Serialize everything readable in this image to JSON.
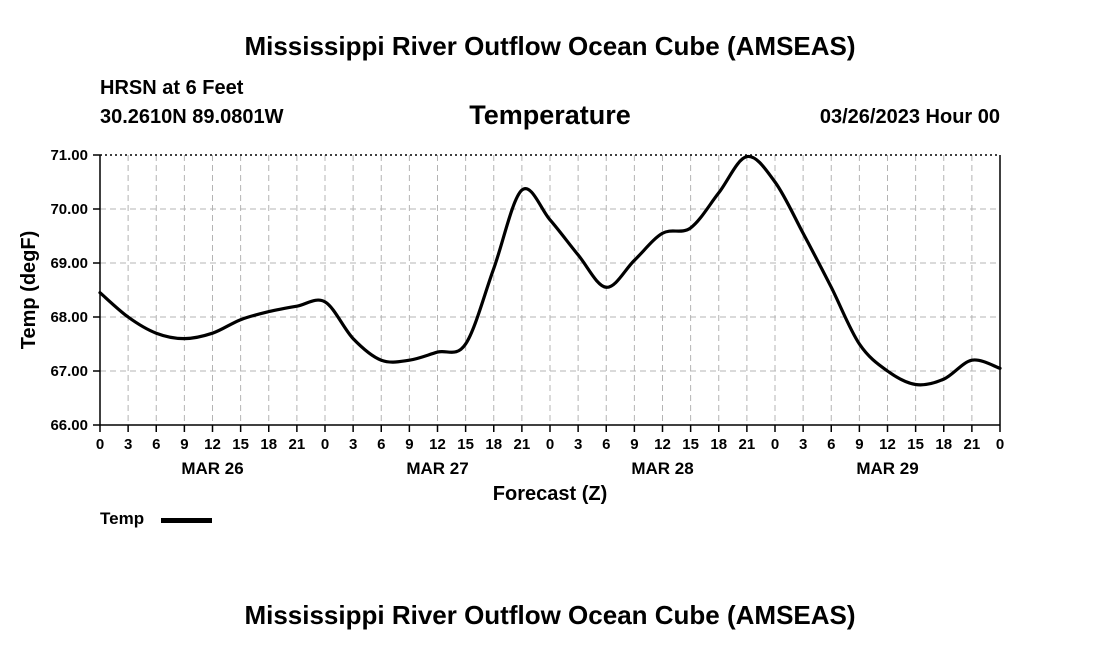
{
  "header": {
    "title": "Mississippi River Outflow Ocean Cube (AMSEAS)",
    "station": "HRSN at 6 Feet",
    "coords": "30.2610N  89.0801W",
    "chart_title": "Temperature",
    "run_time": "03/26/2023 Hour 00"
  },
  "footer": {
    "title": "Mississippi River Outflow Ocean Cube (AMSEAS)"
  },
  "legend": {
    "label": "Temp"
  },
  "chart_data": {
    "type": "line",
    "title": "Temperature",
    "xlabel": "Forecast (Z)",
    "ylabel": "Temp (degF)",
    "ylim": [
      66.0,
      71.0
    ],
    "xlim": [
      0,
      96
    ],
    "grid": true,
    "y_ticks": [
      "66.00",
      "67.00",
      "68.00",
      "69.00",
      "70.00",
      "71.00"
    ],
    "x_ticks": [
      {
        "h": 0,
        "label": "0"
      },
      {
        "h": 3,
        "label": "3"
      },
      {
        "h": 6,
        "label": "6"
      },
      {
        "h": 9,
        "label": "9"
      },
      {
        "h": 12,
        "label": "12"
      },
      {
        "h": 15,
        "label": "15"
      },
      {
        "h": 18,
        "label": "18"
      },
      {
        "h": 21,
        "label": "21"
      },
      {
        "h": 24,
        "label": "0"
      },
      {
        "h": 27,
        "label": "3"
      },
      {
        "h": 30,
        "label": "6"
      },
      {
        "h": 33,
        "label": "9"
      },
      {
        "h": 36,
        "label": "12"
      },
      {
        "h": 39,
        "label": "15"
      },
      {
        "h": 42,
        "label": "18"
      },
      {
        "h": 45,
        "label": "21"
      },
      {
        "h": 48,
        "label": "0"
      },
      {
        "h": 51,
        "label": "3"
      },
      {
        "h": 54,
        "label": "6"
      },
      {
        "h": 57,
        "label": "9"
      },
      {
        "h": 60,
        "label": "12"
      },
      {
        "h": 63,
        "label": "15"
      },
      {
        "h": 66,
        "label": "18"
      },
      {
        "h": 69,
        "label": "21"
      },
      {
        "h": 72,
        "label": "0"
      },
      {
        "h": 75,
        "label": "3"
      },
      {
        "h": 78,
        "label": "6"
      },
      {
        "h": 81,
        "label": "9"
      },
      {
        "h": 84,
        "label": "12"
      },
      {
        "h": 87,
        "label": "15"
      },
      {
        "h": 90,
        "label": "18"
      },
      {
        "h": 93,
        "label": "21"
      },
      {
        "h": 96,
        "label": "0"
      }
    ],
    "day_labels": [
      {
        "h": 12,
        "label": "MAR 26"
      },
      {
        "h": 36,
        "label": "MAR 27"
      },
      {
        "h": 60,
        "label": "MAR 28"
      },
      {
        "h": 84,
        "label": "MAR 29"
      }
    ],
    "series": [
      {
        "name": "Temp",
        "color": "#000000",
        "points": [
          [
            0,
            68.45
          ],
          [
            3,
            68.0
          ],
          [
            6,
            67.7
          ],
          [
            9,
            67.6
          ],
          [
            12,
            67.7
          ],
          [
            15,
            67.95
          ],
          [
            18,
            68.1
          ],
          [
            21,
            68.2
          ],
          [
            24,
            68.28
          ],
          [
            27,
            67.6
          ],
          [
            30,
            67.2
          ],
          [
            33,
            67.2
          ],
          [
            36,
            67.35
          ],
          [
            39,
            67.5
          ],
          [
            42,
            68.9
          ],
          [
            45,
            70.35
          ],
          [
            48,
            69.8
          ],
          [
            51,
            69.15
          ],
          [
            54,
            68.55
          ],
          [
            57,
            69.05
          ],
          [
            60,
            69.55
          ],
          [
            63,
            69.65
          ],
          [
            66,
            70.3
          ],
          [
            69,
            70.97
          ],
          [
            72,
            70.5
          ],
          [
            75,
            69.55
          ],
          [
            78,
            68.55
          ],
          [
            81,
            67.5
          ],
          [
            84,
            67.0
          ],
          [
            87,
            66.75
          ],
          [
            90,
            66.85
          ],
          [
            93,
            67.2
          ],
          [
            96,
            67.05
          ]
        ]
      }
    ]
  }
}
